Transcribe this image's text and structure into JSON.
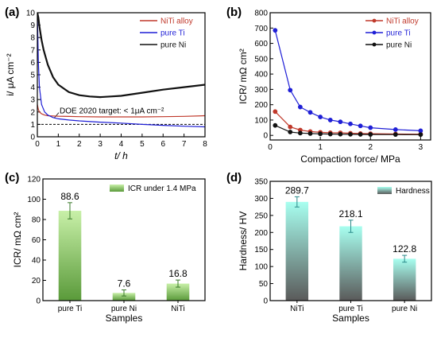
{
  "chart_data": [
    {
      "panel": "(a)",
      "type": "line",
      "xlabel": "t/ h",
      "ylabel": "i/ μA cm⁻²",
      "xlim": [
        0,
        8
      ],
      "ylim": [
        0,
        10
      ],
      "xticks": [
        0,
        1,
        2,
        3,
        4,
        5,
        6,
        7,
        8
      ],
      "yticks": [
        0,
        1,
        2,
        3,
        4,
        5,
        6,
        7,
        8,
        9,
        10
      ],
      "legend": "top-right",
      "annotation": "DOE 2020 target: < 1μA cm⁻²",
      "reference_line": {
        "y": 1.0,
        "style": "dashed"
      },
      "series": [
        {
          "name": "NiTi alloy",
          "color": "#c0392b",
          "x": [
            0,
            0.05,
            0.1,
            0.2,
            0.35,
            0.5,
            0.75,
            1,
            1.5,
            2,
            3,
            4,
            5,
            6,
            7,
            8
          ],
          "y": [
            2.6,
            2.2,
            2.0,
            1.85,
            1.75,
            1.7,
            1.68,
            1.66,
            1.64,
            1.62,
            1.6,
            1.6,
            1.6,
            1.62,
            1.65,
            1.7
          ]
        },
        {
          "name": "pure Ti",
          "color": "#1f1fd6",
          "x": [
            0,
            0.05,
            0.1,
            0.2,
            0.35,
            0.5,
            0.75,
            1,
            1.5,
            2,
            3,
            4,
            5,
            6,
            7,
            8
          ],
          "y": [
            10,
            6.0,
            4.0,
            2.6,
            2.0,
            1.75,
            1.55,
            1.45,
            1.35,
            1.28,
            1.18,
            1.1,
            1.0,
            0.92,
            0.85,
            0.8
          ]
        },
        {
          "name": "pure Ni",
          "color": "#111111",
          "x": [
            0,
            0.05,
            0.1,
            0.2,
            0.3,
            0.5,
            0.75,
            1,
            1.5,
            2,
            2.5,
            3,
            3.5,
            4,
            5,
            6,
            7,
            8
          ],
          "y": [
            10,
            9.6,
            8.9,
            7.8,
            7.0,
            5.8,
            4.8,
            4.2,
            3.6,
            3.35,
            3.25,
            3.2,
            3.25,
            3.3,
            3.55,
            3.8,
            4.0,
            4.2
          ]
        }
      ]
    },
    {
      "panel": "(b)",
      "type": "line",
      "xlabel": "Compaction force/ MPa",
      "ylabel": "ICR/ mΩ cm²",
      "xlim": [
        0,
        3.2
      ],
      "ylim": [
        -30,
        800
      ],
      "xticks": [
        0,
        1,
        2,
        3
      ],
      "yticks": [
        0,
        100,
        200,
        300,
        400,
        500,
        600,
        700,
        800
      ],
      "legend": "top-right",
      "series": [
        {
          "name": "NiTi alloy",
          "color": "#c0392b",
          "x": [
            0.1,
            0.4,
            0.6,
            0.8,
            1.0,
            1.2,
            1.4,
            1.6,
            1.8,
            2.0,
            2.5,
            3.0
          ],
          "y": [
            155,
            55,
            35,
            25,
            20,
            17,
            16.8,
            14,
            12,
            11,
            9,
            8
          ]
        },
        {
          "name": "pure Ti",
          "color": "#1f1fd6",
          "x": [
            0.1,
            0.4,
            0.6,
            0.8,
            1.0,
            1.2,
            1.4,
            1.6,
            1.8,
            2.0,
            2.5,
            3.0
          ],
          "y": [
            685,
            295,
            185,
            150,
            120,
            100,
            88.6,
            75,
            62,
            50,
            38,
            30
          ]
        },
        {
          "name": "pure Ni",
          "color": "#111111",
          "x": [
            0.1,
            0.4,
            0.6,
            0.8,
            1.0,
            1.2,
            1.4,
            1.6,
            1.8,
            2.0,
            2.5,
            3.0
          ],
          "y": [
            65,
            22,
            15,
            12,
            10,
            8.5,
            7.6,
            7,
            6.5,
            6,
            5.5,
            5
          ]
        }
      ]
    },
    {
      "panel": "(c)",
      "type": "bar",
      "xlabel": "Samples",
      "ylabel": "ICR/ mΩ cm²",
      "ylim": [
        0,
        120
      ],
      "yticks": [
        0,
        20,
        40,
        60,
        80,
        100,
        120
      ],
      "legend": "top-right",
      "legend_label": "ICR under 1.4 MPa",
      "color_top": "#c8f0a8",
      "color_bottom": "#5a9a3a",
      "categories": [
        "pure Ti",
        "pure Ni",
        "NiTi"
      ],
      "values": [
        88.6,
        7.6,
        16.8
      ],
      "value_labels": [
        "88.6",
        "7.6",
        "16.8"
      ],
      "errors": [
        8,
        3,
        3.5
      ]
    },
    {
      "panel": "(d)",
      "type": "bar",
      "xlabel": "Samples",
      "ylabel": "Hardness/ HV",
      "ylim": [
        0,
        350
      ],
      "yticks": [
        0,
        50,
        100,
        150,
        200,
        250,
        300,
        350
      ],
      "legend": "top-right",
      "legend_label": "Hardness",
      "color_top": "#a8fff0",
      "color_bottom": "#5a5a5a",
      "categories": [
        "NiTi",
        "pure Ti",
        "pure Ni"
      ],
      "values": [
        289.7,
        218.1,
        122.8
      ],
      "value_labels": [
        "289.7",
        "218.1",
        "122.8"
      ],
      "errors": [
        15,
        18,
        10
      ]
    }
  ]
}
